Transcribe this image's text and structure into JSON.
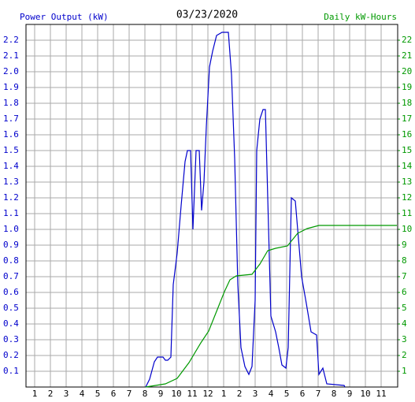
{
  "chart_data": {
    "type": "line",
    "title": "03/23/2020",
    "y_label": "Power Output (kW)",
    "y2_label": "Daily kW-Hours",
    "xlim": [
      0.45,
      24.05
    ],
    "xticks": [
      1,
      2,
      3,
      4,
      5,
      6,
      7,
      8,
      9,
      10,
      11,
      12,
      {
        "value": 13,
        "label": "1"
      },
      {
        "value": 14,
        "label": "2"
      },
      {
        "value": 15,
        "label": "3"
      },
      {
        "value": 16,
        "label": "4"
      },
      {
        "value": 17,
        "label": "5"
      },
      {
        "value": 18,
        "label": "6"
      },
      {
        "value": 19,
        "label": "7"
      },
      {
        "value": 20,
        "label": "8"
      },
      {
        "value": 21,
        "label": "9"
      },
      {
        "value": 22,
        "label": "10"
      },
      {
        "value": 23,
        "label": "11"
      }
    ],
    "ylim": [
      0,
      2.3
    ],
    "yticks": [
      0.1,
      0.2,
      0.3,
      0.4,
      0.5,
      0.6,
      0.7,
      0.8,
      0.9,
      {
        "value": 1,
        "label": "1.0"
      },
      1.1,
      1.2,
      1.3,
      1.4,
      1.5,
      1.6,
      1.7,
      1.8,
      1.9,
      {
        "value": 2,
        "label": "2.0"
      },
      2.1,
      2.2
    ],
    "y2lim": [
      0,
      23
    ],
    "y2ticks": [
      1,
      2,
      3,
      4,
      5,
      6,
      7,
      8,
      9,
      10,
      11,
      12,
      13,
      14,
      15,
      16,
      17,
      18,
      19,
      20,
      21,
      22
    ],
    "grid": true,
    "series": [
      {
        "name": "Power Output (kW)",
        "color": "#0000cc",
        "x": [
          8.05,
          8.3,
          8.6,
          8.8,
          9.15,
          9.3,
          9.45,
          9.65,
          9.8,
          10.05,
          10.3,
          10.55,
          10.7,
          10.9,
          11.05,
          11.25,
          11.45,
          11.6,
          11.75,
          11.9,
          12.1,
          12.3,
          12.55,
          12.9,
          13.3,
          13.5,
          13.7,
          13.9,
          14.1,
          14.35,
          14.6,
          14.8,
          15.0,
          15.1,
          15.3,
          15.5,
          15.65,
          15.8,
          16.0,
          16.3,
          16.5,
          16.7,
          16.95,
          17.1,
          17.3,
          17.55,
          17.7,
          17.95,
          18.25,
          18.55,
          18.9,
          19.05,
          19.3,
          19.55,
          20.65,
          20.7
        ],
        "values": [
          0,
          0.05,
          0.16,
          0.19,
          0.19,
          0.17,
          0.17,
          0.19,
          0.65,
          0.85,
          1.15,
          1.43,
          1.5,
          1.5,
          1.0,
          1.5,
          1.5,
          1.12,
          1.3,
          1.65,
          2.03,
          2.13,
          2.23,
          2.25,
          2.25,
          1.98,
          1.45,
          0.65,
          0.25,
          0.13,
          0.08,
          0.13,
          0.55,
          1.5,
          1.7,
          1.76,
          1.76,
          1.2,
          0.45,
          0.35,
          0.25,
          0.14,
          0.12,
          0.25,
          1.2,
          1.18,
          1.0,
          0.7,
          0.53,
          0.35,
          0.33,
          0.08,
          0.12,
          0.02,
          0.01,
          0
        ]
      },
      {
        "name": "Daily kW-Hours",
        "color": "#009900",
        "axis": "y2",
        "x": [
          8.05,
          9.3,
          10.05,
          10.8,
          11.55,
          12.05,
          12.55,
          13.05,
          13.4,
          13.8,
          14.8,
          15.3,
          15.8,
          16.3,
          17.05,
          17.7,
          18.3,
          19.05,
          24.0
        ],
        "values": [
          0,
          0.2,
          0.55,
          1.55,
          2.8,
          3.55,
          4.8,
          6.05,
          6.8,
          7.05,
          7.15,
          7.8,
          8.65,
          8.8,
          8.95,
          9.75,
          10.05,
          10.25,
          10.25
        ]
      }
    ]
  }
}
